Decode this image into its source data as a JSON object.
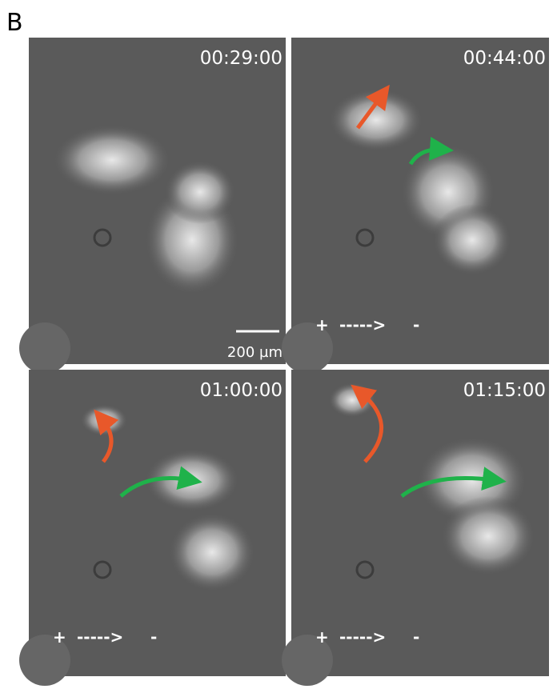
{
  "panel_label": "B",
  "panels": [
    {
      "time": "00:29:00",
      "scale_bar": "200 µm"
    },
    {
      "time": "00:44:00",
      "field": {
        "plus": "+",
        "arrow": "----->",
        "minus": "-"
      }
    },
    {
      "time": "01:00:00",
      "field": {
        "plus": "+",
        "arrow": "----->",
        "minus": "-"
      }
    },
    {
      "time": "01:15:00",
      "field": {
        "plus": "+",
        "arrow": "----->",
        "minus": "-"
      }
    }
  ]
}
